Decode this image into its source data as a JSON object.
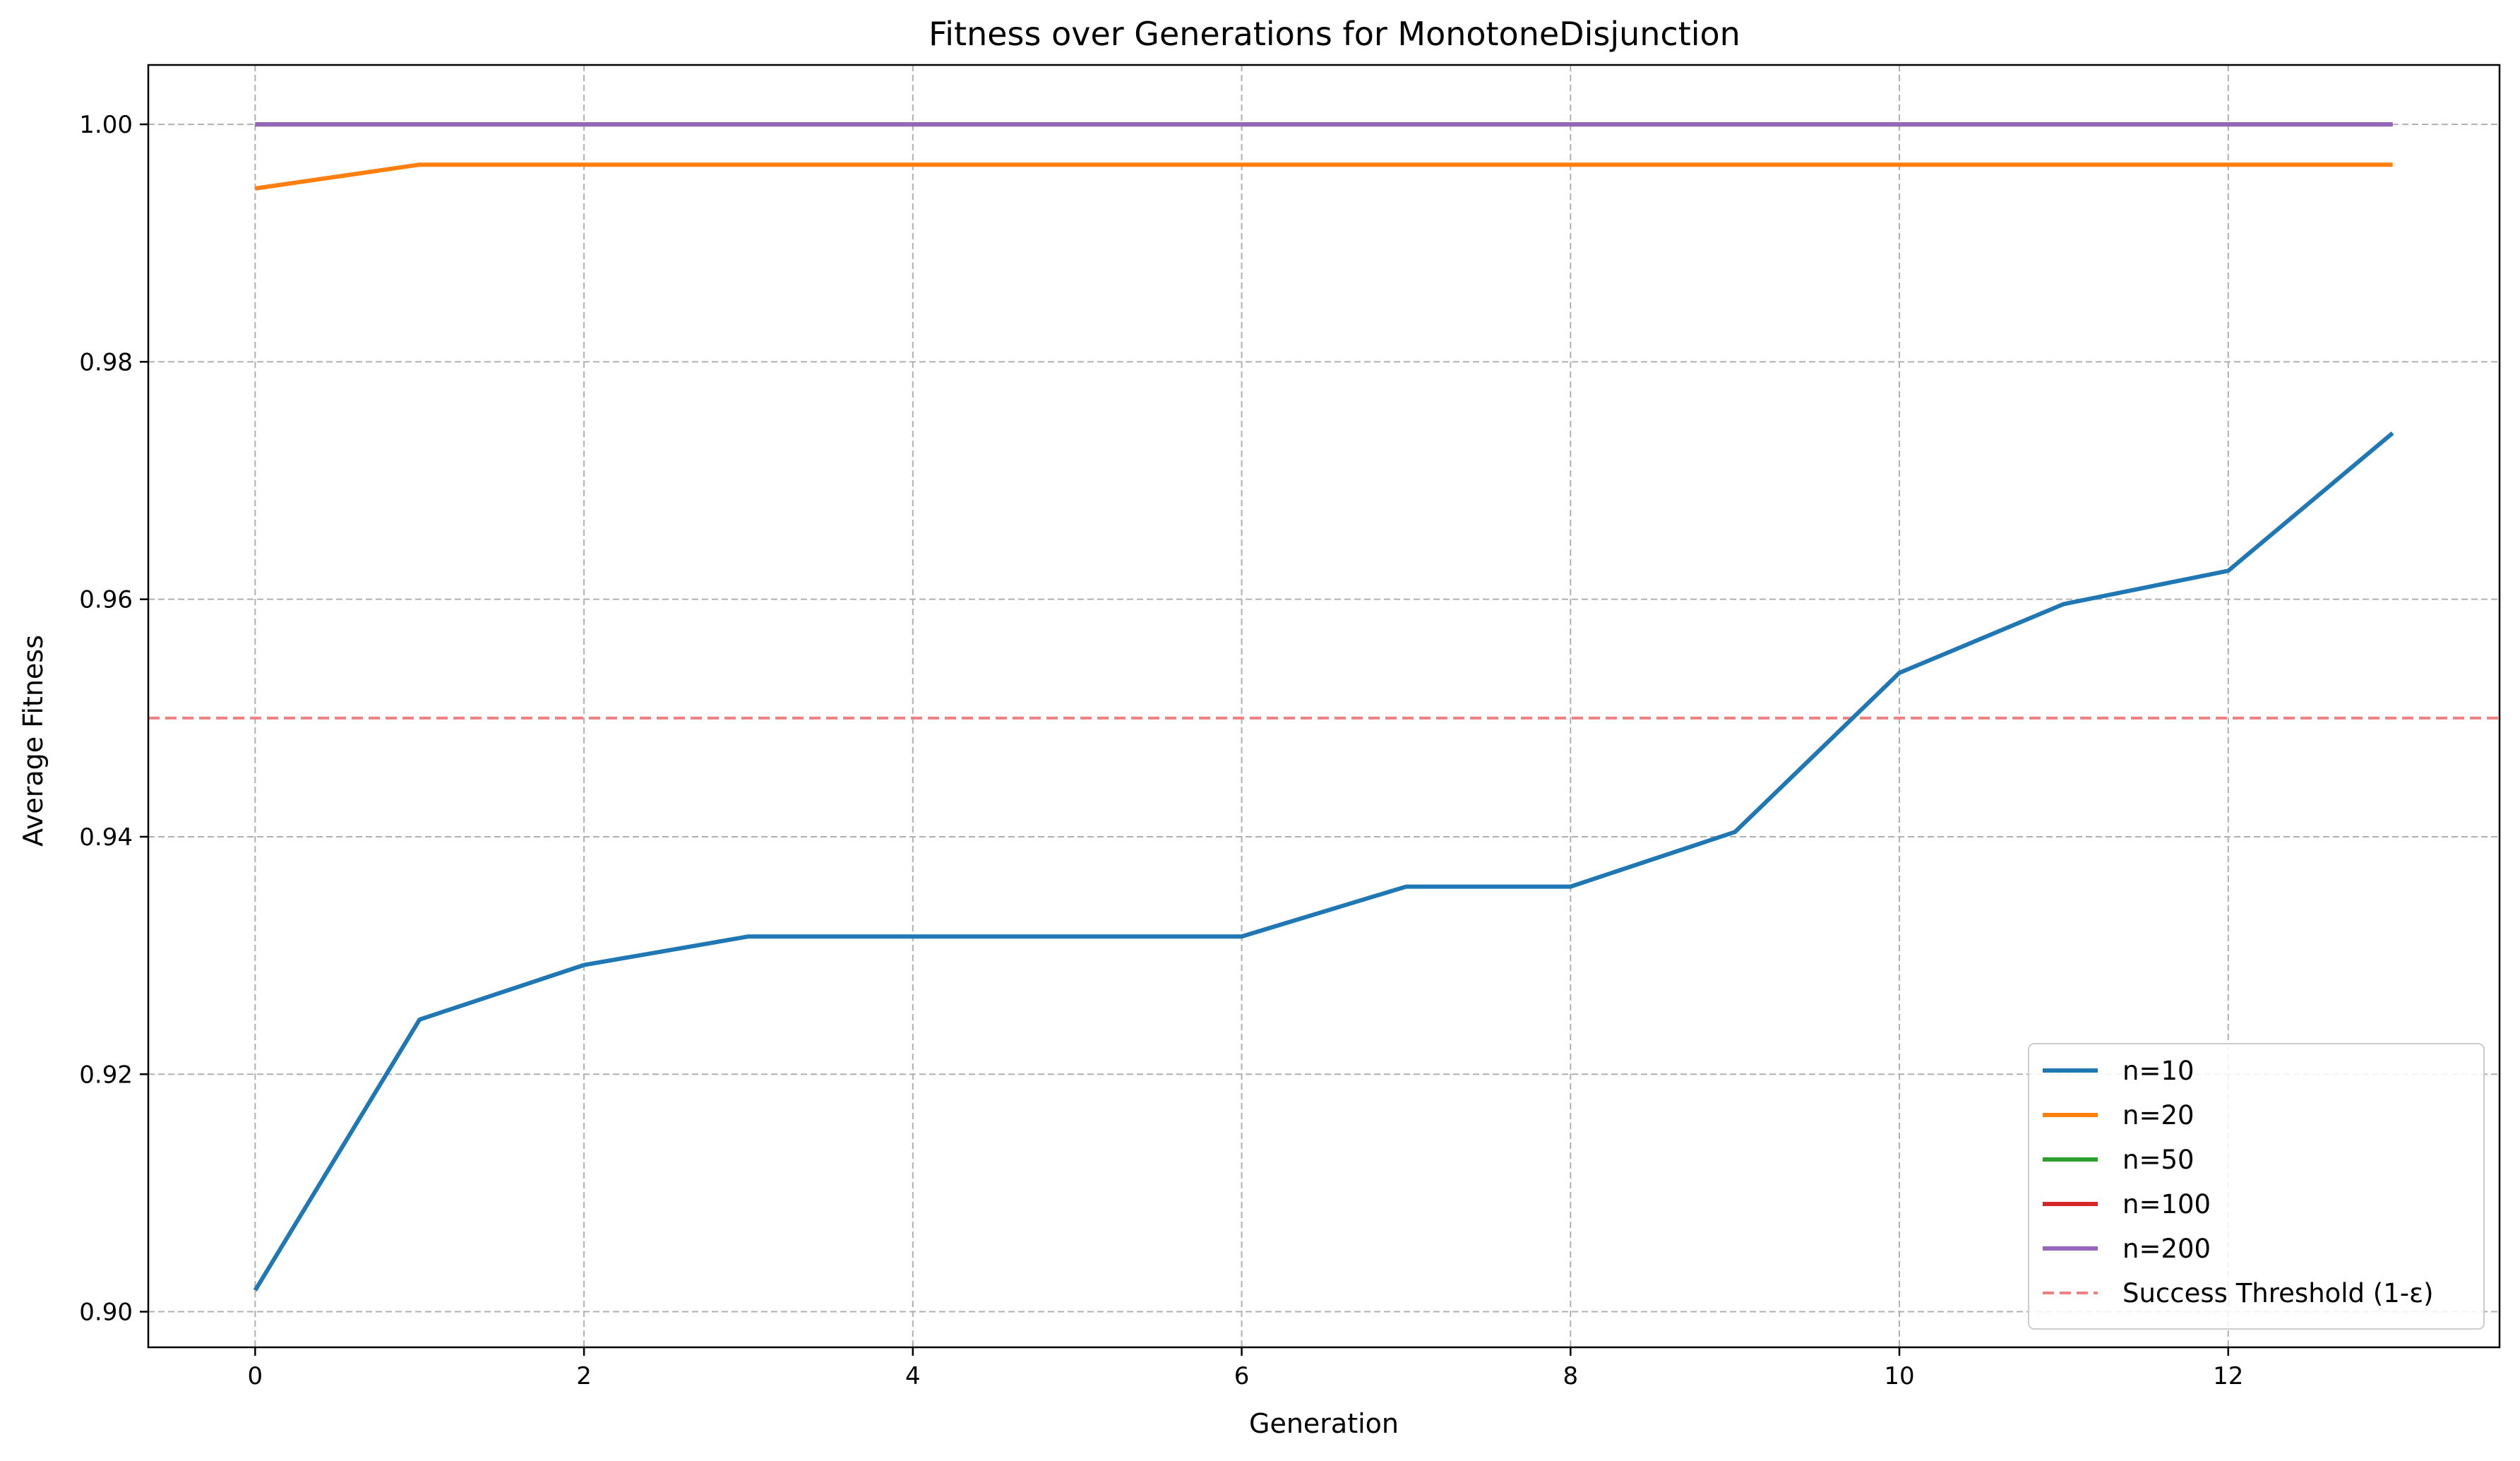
{
  "chart_data": {
    "type": "line",
    "title": "Fitness over Generations for MonotoneDisjunction",
    "xlabel": "Generation",
    "ylabel": "Average Fitness",
    "xlim": [
      -0.65,
      13.65
    ],
    "ylim": [
      0.897,
      1.005
    ],
    "xticks": [
      0,
      2,
      4,
      6,
      8,
      10,
      12
    ],
    "yticks": [
      0.9,
      0.92,
      0.94,
      0.96,
      0.98,
      1.0
    ],
    "ytick_labels": [
      "0.90",
      "0.92",
      "0.94",
      "0.96",
      "0.98",
      "1.00"
    ],
    "grid": true,
    "legend_position": "lower-right",
    "x": [
      0,
      1,
      2,
      3,
      4,
      5,
      6,
      7,
      8,
      9,
      10,
      11,
      12,
      13
    ],
    "series": [
      {
        "name": "n=10",
        "color": "#1f77b4",
        "values": [
          0.9018,
          0.9246,
          0.9292,
          0.9316,
          0.9316,
          0.9316,
          0.9316,
          0.9358,
          0.9358,
          0.9404,
          0.9538,
          0.9596,
          0.9624,
          0.974
        ]
      },
      {
        "name": "n=20",
        "color": "#ff7f0e",
        "values": [
          0.9946,
          0.9966,
          0.9966,
          0.9966,
          0.9966,
          0.9966,
          0.9966,
          0.9966,
          0.9966,
          0.9966,
          0.9966,
          0.9966,
          0.9966,
          0.9966
        ]
      },
      {
        "name": "n=50",
        "color": "#2ca02c",
        "values": [
          1.0,
          1.0,
          1.0,
          1.0,
          1.0,
          1.0,
          1.0,
          1.0,
          1.0,
          1.0,
          1.0,
          1.0,
          1.0,
          1.0
        ]
      },
      {
        "name": "n=100",
        "color": "#d62728",
        "values": [
          1.0,
          1.0,
          1.0,
          1.0,
          1.0,
          1.0,
          1.0,
          1.0,
          1.0,
          1.0,
          1.0,
          1.0,
          1.0,
          1.0
        ]
      },
      {
        "name": "n=200",
        "color": "#9467bd",
        "values": [
          1.0,
          1.0,
          1.0,
          1.0,
          1.0,
          1.0,
          1.0,
          1.0,
          1.0,
          1.0,
          1.0,
          1.0,
          1.0,
          1.0
        ]
      }
    ],
    "threshold": {
      "name": "Success Threshold (1-ε)",
      "value": 0.95,
      "color": "#f08080",
      "style": "dashed"
    }
  }
}
